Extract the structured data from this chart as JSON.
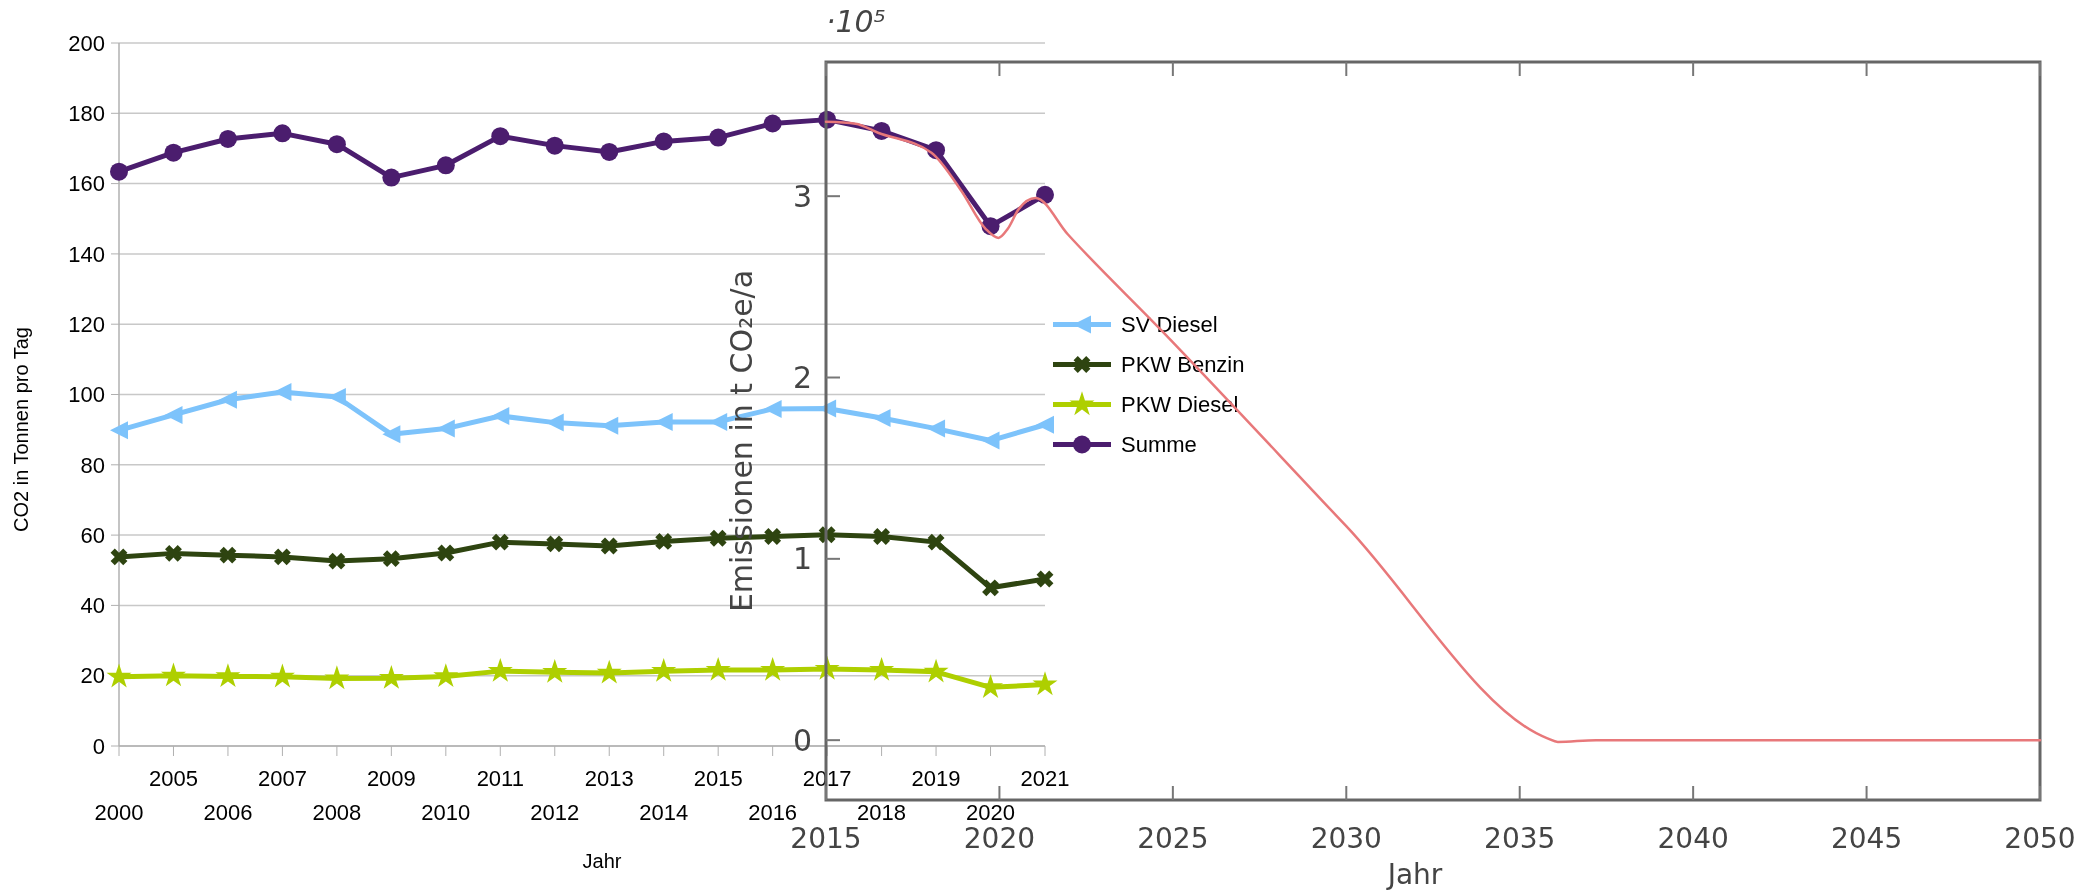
{
  "chart_data": [
    {
      "type": "line",
      "xlabel": "Jahr",
      "ylabel": "CO2 in Tonnen pro Tag",
      "categories": [
        "2000",
        "2005",
        "2006",
        "2007",
        "2008",
        "2009",
        "2010",
        "2011",
        "2012",
        "2013",
        "2014",
        "2015",
        "2016",
        "2017",
        "2018",
        "2019",
        "2020",
        "2021"
      ],
      "ylim": [
        0,
        200
      ],
      "yticks": [
        0,
        20,
        40,
        60,
        80,
        100,
        120,
        140,
        160,
        180,
        200
      ],
      "grid": "y",
      "legend": "right",
      "line_style": "solid",
      "series": [
        {
          "name": "SV Diesel",
          "color": "#7dc3fb",
          "marker": "triangle",
          "values": [
            89.8,
            94.2,
            98.5,
            100.7,
            99.3,
            88.7,
            90.3,
            93.9,
            92,
            91.1,
            92.2,
            92.2,
            95.9,
            96,
            93.3,
            90.3,
            86.9,
            91.4
          ]
        },
        {
          "name": "PKW Benzin",
          "color": "#2e4410",
          "marker": "cross",
          "values": [
            53.8,
            54.8,
            54.3,
            53.8,
            52.6,
            53.3,
            54.9,
            58,
            57.5,
            56.9,
            58.2,
            59.1,
            59.6,
            60.1,
            59.6,
            58,
            45,
            47.5
          ]
        },
        {
          "name": "PKW Diesel",
          "color": "#aecf00",
          "marker": "star",
          "values": [
            19.7,
            20,
            19.8,
            19.7,
            19.2,
            19.3,
            19.8,
            21.3,
            21,
            20.8,
            21.3,
            21.6,
            21.6,
            21.9,
            21.6,
            21.1,
            16.7,
            17.5
          ]
        },
        {
          "name": "Summe",
          "color": "#4b1d6e",
          "marker": "circle",
          "values": [
            163.4,
            168.8,
            172.7,
            174.3,
            171.2,
            161.7,
            165.2,
            173.5,
            170.8,
            169,
            172,
            173.1,
            177.1,
            178.2,
            175,
            169.5,
            147.9,
            156.8
          ]
        }
      ]
    },
    {
      "type": "line",
      "xlabel": "Jahr",
      "ylabel": "Emissionen in t CO₂e/a",
      "annotations": [
        "·10⁵"
      ],
      "xlim": [
        2015,
        2050
      ],
      "xticks": [
        2015,
        2020,
        2025,
        2030,
        2035,
        2040,
        2045,
        2050
      ],
      "ylim": [
        -0.33,
        3.74
      ],
      "yticks": [
        0,
        1,
        2,
        3
      ],
      "marker": "none",
      "line_style": "solid",
      "series": [
        {
          "color": "#e8787a",
          "x": [
            2015,
            2015.85,
            2016.5,
            2018.04,
            2018.9,
            2019.6,
            2019.97,
            2020.24,
            2020.56,
            2021.04,
            2021.97,
            2024.67,
            2030,
            2035.8,
            2036.1,
            2037.2,
            2050
          ],
          "values": [
            3.41,
            3.4,
            3.35,
            3.24,
            3.03,
            2.82,
            2.77,
            2.82,
            2.93,
            2.99,
            2.79,
            2.26,
            1.18,
            0.01,
            -0.01,
            0,
            0
          ]
        }
      ]
    }
  ]
}
